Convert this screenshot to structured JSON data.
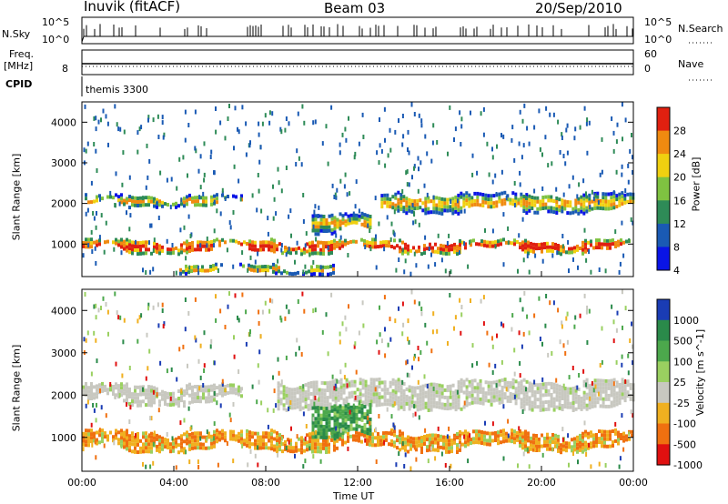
{
  "header": {
    "site": "Inuvik (fitACF)",
    "beam": "Beam 03",
    "date": "20/Sep/2010"
  },
  "sky_panel": {
    "left_label": "N.Sky",
    "right_label": "N.Search",
    "left_ticks": [
      "10^5",
      "10^0"
    ],
    "right_ticks": [
      "10^5",
      "10^0"
    ]
  },
  "freq_panel": {
    "left_label_1": "Freq.",
    "left_label_2": "[MHz]",
    "left_tick": "8",
    "right_label": "Nave",
    "right_ticks": [
      "60",
      "0"
    ]
  },
  "cpid": {
    "label": "CPID",
    "value": "themis 3300"
  },
  "chart_data": [
    {
      "type": "heatmap",
      "parameter": "Power",
      "ylabel": "Slant Range [km]",
      "y_ticks": [
        1000,
        2000,
        3000,
        4000
      ],
      "ylim": [
        200,
        4500
      ],
      "colorbar": {
        "label": "Power [dB]",
        "ticks": [
          4,
          8,
          12,
          16,
          20,
          24,
          28
        ],
        "colors": [
          "#0a14e6",
          "#1a5ab4",
          "#2e8b57",
          "#7fc241",
          "#f0d010",
          "#f08a10",
          "#e02010"
        ]
      },
      "bands": [
        {
          "range_km": [
            800,
            1150
          ],
          "time_h": [
            0,
            24
          ],
          "level": "strong"
        },
        {
          "range_km": [
            1950,
            2250
          ],
          "time_h": [
            0,
            7
          ],
          "level": "moderate"
        },
        {
          "range_km": [
            1800,
            2300
          ],
          "time_h": [
            13,
            24
          ],
          "level": "moderate"
        },
        {
          "range_km": [
            300,
            550
          ],
          "time_h": [
            4,
            11
          ],
          "level": "moderate"
        },
        {
          "range_km": [
            1300,
            1800
          ],
          "time_h": [
            10,
            12.5
          ],
          "level": "moderate"
        }
      ]
    },
    {
      "type": "heatmap",
      "parameter": "Velocity",
      "ylabel": "Slant Range [km]",
      "xlabel": "Time UT",
      "x_ticks": [
        "00:00",
        "04:00",
        "08:00",
        "12:00",
        "16:00",
        "20:00",
        "00:00"
      ],
      "y_ticks": [
        1000,
        2000,
        3000,
        4000
      ],
      "ylim": [
        200,
        4500
      ],
      "colorbar": {
        "label": "Velocity [m s^-1]",
        "ticks": [
          "1000",
          "500",
          "100",
          "25",
          "-25",
          "-100",
          "-500",
          "-1000"
        ],
        "colors": [
          "#1a3cb4",
          "#2a8a4a",
          "#4ca84c",
          "#9ad060",
          "#c8c8c0",
          "#f0b020",
          "#f07010",
          "#e01010"
        ]
      },
      "bands": [
        {
          "range_km": [
            700,
            1200
          ],
          "time_h": [
            0,
            24
          ],
          "velocity": "-100 to -500"
        },
        {
          "range_km": [
            1800,
            2300
          ],
          "time_h": [
            0,
            7
          ],
          "velocity": "-25 to 25"
        },
        {
          "range_km": [
            1700,
            2400
          ],
          "time_h": [
            8.5,
            24
          ],
          "velocity": "-25 to 25"
        },
        {
          "range_km": [
            1000,
            1800
          ],
          "time_h": [
            10,
            12.5
          ],
          "velocity": "100 to 500"
        }
      ]
    }
  ]
}
